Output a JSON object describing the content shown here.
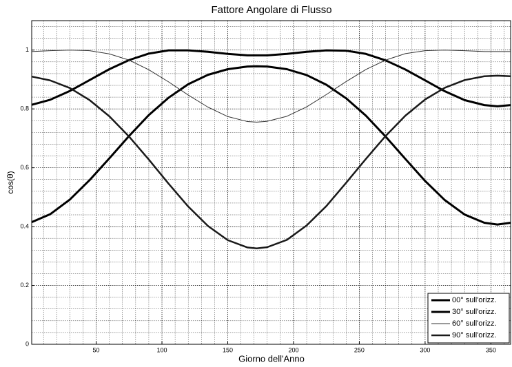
{
  "chart_data": {
    "type": "line",
    "title": "Fattore Angolare di Flusso",
    "x_label": "Giorno dell'Anno",
    "y_label": "cos(θ)",
    "x": [
      1,
      15,
      30,
      45,
      60,
      75,
      90,
      105,
      120,
      135,
      150,
      165,
      172,
      180,
      195,
      210,
      225,
      240,
      255,
      270,
      285,
      300,
      315,
      330,
      345,
      355,
      365
    ],
    "series": [
      {
        "name": "00° sull'orizz.",
        "color": "#000000",
        "values": [
          0.415,
          0.442,
          0.492,
          0.558,
          0.632,
          0.708,
          0.779,
          0.838,
          0.884,
          0.916,
          0.935,
          0.944,
          0.945,
          0.944,
          0.935,
          0.915,
          0.882,
          0.836,
          0.777,
          0.706,
          0.63,
          0.555,
          0.49,
          0.441,
          0.413,
          0.407,
          0.413
        ]
      },
      {
        "name": "30° sull'orizz.",
        "color": "#000000",
        "values": [
          0.814,
          0.831,
          0.861,
          0.898,
          0.935,
          0.966,
          0.988,
          0.999,
          0.999,
          0.994,
          0.987,
          0.982,
          0.982,
          0.982,
          0.987,
          0.994,
          0.999,
          0.998,
          0.987,
          0.965,
          0.934,
          0.897,
          0.86,
          0.83,
          0.813,
          0.809,
          0.813
        ]
      },
      {
        "name": "60° sull'orizz.",
        "color": "#333333",
        "values": [
          0.995,
          0.998,
          1.0,
          0.998,
          0.987,
          0.966,
          0.933,
          0.892,
          0.847,
          0.806,
          0.774,
          0.757,
          0.755,
          0.758,
          0.775,
          0.807,
          0.849,
          0.893,
          0.934,
          0.966,
          0.988,
          0.998,
          1.0,
          0.998,
          0.995,
          0.995,
          0.995
        ]
      },
      {
        "name": "90° sull'orizz.",
        "color": "#1a1a1a",
        "values": [
          0.91,
          0.897,
          0.871,
          0.83,
          0.775,
          0.706,
          0.628,
          0.546,
          0.468,
          0.402,
          0.354,
          0.329,
          0.326,
          0.33,
          0.355,
          0.404,
          0.47,
          0.549,
          0.63,
          0.708,
          0.777,
          0.832,
          0.872,
          0.898,
          0.911,
          0.913,
          0.911
        ]
      }
    ],
    "line_widths": [
      3,
      3,
      1,
      2.5
    ],
    "xlim": [
      1,
      365
    ],
    "xticks": [
      50,
      100,
      150,
      200,
      250,
      300,
      350
    ],
    "ylim": [
      0,
      1.1
    ],
    "yticks": [
      0,
      0.2,
      0.4,
      0.6,
      0.8,
      1
    ],
    "grid": true,
    "minor_grid": true,
    "legend": "lower right"
  }
}
